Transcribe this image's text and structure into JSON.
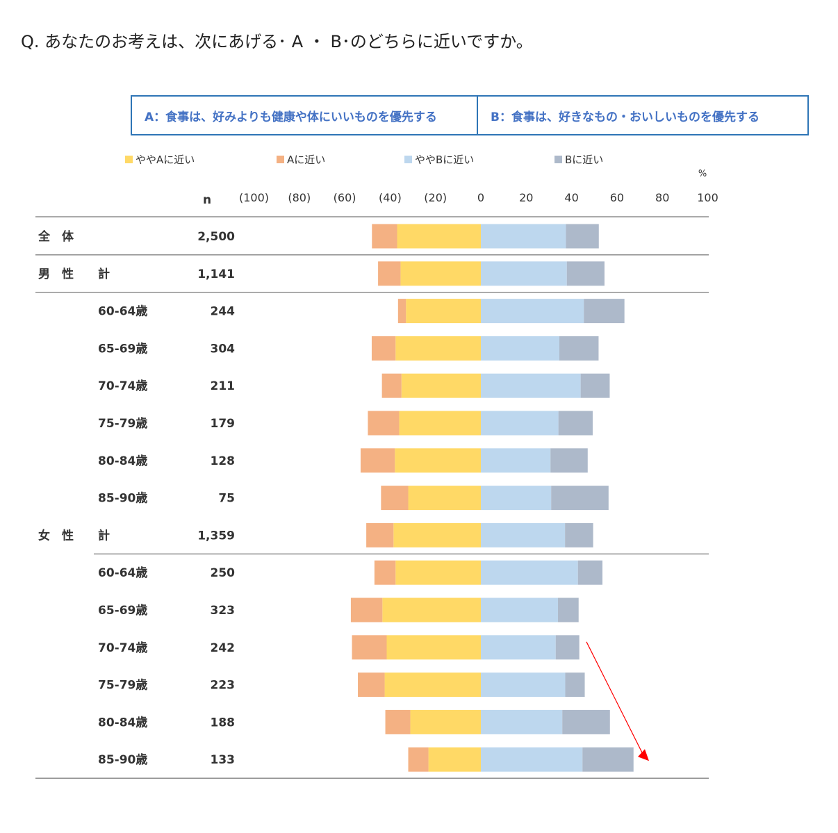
{
  "question": "Q. あなたのお考えは、次にあげる･ A ・ B･のどちらに近いですか。",
  "choices": {
    "a": "A：食事は、好みよりも健康や体にいいものを優先する",
    "b": "B：食事は、好きなもの・おいしいものを優先する"
  },
  "colors": {
    "yaya_a": "#ffd966",
    "a": "#f4b183",
    "yaya_b": "#bdd7ee",
    "b": "#adb9ca",
    "annotation_arrow": "#ff0000",
    "choice_border": "#2e75b6",
    "choice_text": "#4472c4"
  },
  "chart_data": {
    "type": "bar",
    "orientation": "horizontal-diverging",
    "unit_label": "%",
    "n_header": "n",
    "ticks": [
      "(100)",
      "(80)",
      "(60)",
      "(40)",
      "(20)",
      "0",
      "20",
      "40",
      "60",
      "80",
      "100"
    ],
    "xlim": [
      -100,
      100
    ],
    "legend": [
      "ややAに近い",
      "Aに近い",
      "ややBに近い",
      "Bに近い"
    ],
    "series": [
      {
        "name": "ややAに近い",
        "side": "left",
        "inner": true,
        "values": [
          36.9,
          35.4,
          33.0,
          37.6,
          35.0,
          36.0,
          37.9,
          32.0,
          38.5,
          37.6,
          43.4,
          41.5,
          42.4,
          31.1,
          23.1
        ]
      },
      {
        "name": "Aに近い",
        "side": "left",
        "inner": false,
        "values": [
          11.1,
          9.9,
          3.5,
          10.5,
          8.6,
          13.8,
          15.1,
          12.0,
          12.0,
          9.3,
          13.9,
          15.3,
          11.8,
          11.0,
          8.9
        ]
      },
      {
        "name": "ややBに近い",
        "side": "right",
        "inner": true,
        "values": [
          37.5,
          37.9,
          45.4,
          34.6,
          44.0,
          34.2,
          30.7,
          31.0,
          37.1,
          42.8,
          34.0,
          33.0,
          37.2,
          35.9,
          44.8
        ]
      },
      {
        "name": "Bに近い",
        "side": "right",
        "inner": false,
        "values": [
          14.5,
          16.6,
          17.9,
          17.3,
          12.8,
          15.1,
          16.4,
          25.3,
          12.4,
          10.8,
          9.1,
          10.4,
          8.6,
          21.0,
          22.5
        ]
      }
    ],
    "rows": [
      {
        "group": "全　体",
        "sub": "",
        "n": "2,500"
      },
      {
        "group": "男　性",
        "sub": "計",
        "n": "1,141"
      },
      {
        "group": "",
        "sub": "60-64歳",
        "n": "244"
      },
      {
        "group": "",
        "sub": "65-69歳",
        "n": "304"
      },
      {
        "group": "",
        "sub": "70-74歳",
        "n": "211"
      },
      {
        "group": "",
        "sub": "75-79歳",
        "n": "179"
      },
      {
        "group": "",
        "sub": "80-84歳",
        "n": "128"
      },
      {
        "group": "",
        "sub": "85-90歳",
        "n": "75"
      },
      {
        "group": "女　性",
        "sub": "計",
        "n": "1,359"
      },
      {
        "group": "",
        "sub": "60-64歳",
        "n": "250"
      },
      {
        "group": "",
        "sub": "65-69歳",
        "n": "323"
      },
      {
        "group": "",
        "sub": "70-74歳",
        "n": "242"
      },
      {
        "group": "",
        "sub": "75-79歳",
        "n": "223"
      },
      {
        "group": "",
        "sub": "80-84歳",
        "n": "188"
      },
      {
        "group": "",
        "sub": "85-90歳",
        "n": "133"
      }
    ],
    "separators_after_rows": [
      0,
      1,
      8,
      14
    ],
    "annotation": {
      "type": "arrow",
      "from_row": 11,
      "to_row": 14,
      "direction": "down-right"
    }
  }
}
